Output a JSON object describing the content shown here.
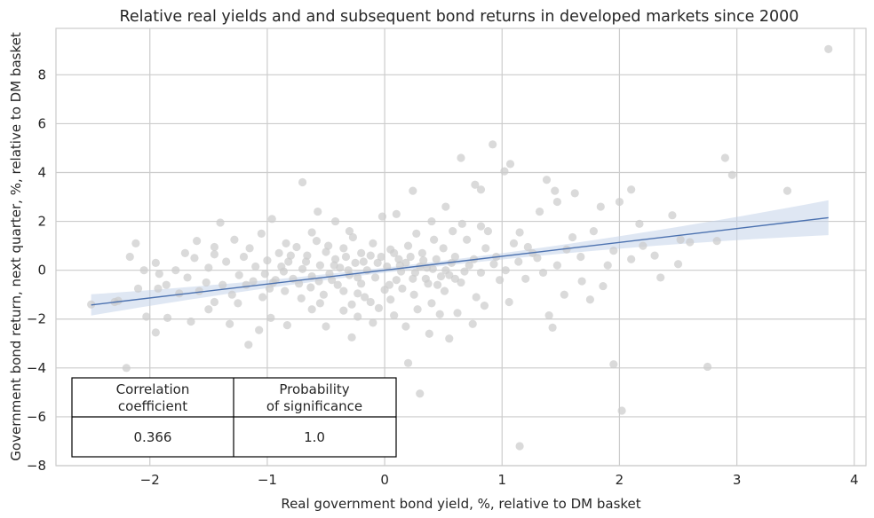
{
  "chart_data": {
    "type": "scatter",
    "title": "Relative real yields and and subsequent bond returns in developed markets since 2000",
    "xlabel": "Real government bond yield, %, relative to DM basket",
    "ylabel": "Government bond return, next quarter, %, relative to DM basket",
    "xlim": [
      -2.8,
      4.1
    ],
    "ylim": [
      -8,
      9.9
    ],
    "x_ticks": [
      -2,
      -1,
      0,
      1,
      2,
      3,
      4
    ],
    "x_tick_labels": [
      "−2",
      "−1",
      "0",
      "1",
      "2",
      "3",
      "4"
    ],
    "y_ticks": [
      -8,
      -6,
      -4,
      -2,
      0,
      2,
      4,
      6,
      8
    ],
    "y_tick_labels": [
      "−8",
      "−6",
      "−4",
      "−2",
      "0",
      "2",
      "4",
      "6",
      "8"
    ],
    "grid": true,
    "colors": {
      "points": "#cccccc",
      "regression_line": "#4c72b0",
      "confidence_band": "#c5d3ea",
      "grid": "#cccccc",
      "text": "#262626"
    },
    "series": [
      {
        "kind": "scatter",
        "points": [
          [
            3.78,
            9.05
          ],
          [
            0.92,
            5.15
          ],
          [
            0.65,
            4.6
          ],
          [
            2.9,
            4.6
          ],
          [
            1.07,
            4.35
          ],
          [
            1.02,
            4.05
          ],
          [
            2.96,
            3.9
          ],
          [
            1.38,
            3.7
          ],
          [
            -0.7,
            3.6
          ],
          [
            0.77,
            3.5
          ],
          [
            0.82,
            3.3
          ],
          [
            3.43,
            3.25
          ],
          [
            0.24,
            3.25
          ],
          [
            2.1,
            3.3
          ],
          [
            1.62,
            3.15
          ],
          [
            1.45,
            3.25
          ],
          [
            2.45,
            2.25
          ],
          [
            2.52,
            1.25
          ],
          [
            2.0,
            2.8
          ],
          [
            1.84,
            2.6
          ],
          [
            1.47,
            2.8
          ],
          [
            1.32,
            2.4
          ],
          [
            0.52,
            2.6
          ],
          [
            0.4,
            2.0
          ],
          [
            0.66,
            1.9
          ],
          [
            0.82,
            1.8
          ],
          [
            0.88,
            1.6
          ],
          [
            -0.02,
            2.2
          ],
          [
            0.1,
            2.3
          ],
          [
            -0.42,
            2.0
          ],
          [
            -0.57,
            2.4
          ],
          [
            -0.96,
            2.1
          ],
          [
            -1.4,
            1.95
          ],
          [
            -2.12,
            1.1
          ],
          [
            -2.17,
            0.55
          ],
          [
            -1.6,
            1.2
          ],
          [
            -1.28,
            1.25
          ],
          [
            -1.05,
            1.5
          ],
          [
            -0.84,
            1.1
          ],
          [
            1.1,
            1.1
          ],
          [
            1.22,
            0.95
          ],
          [
            1.55,
            0.85
          ],
          [
            1.95,
            0.8
          ],
          [
            2.3,
            0.6
          ],
          [
            2.6,
            1.15
          ],
          [
            2.1,
            0.45
          ],
          [
            1.67,
            0.55
          ],
          [
            1.47,
            0.2
          ],
          [
            1.3,
            0.5
          ],
          [
            0.95,
            0.55
          ],
          [
            0.82,
            -0.1
          ],
          [
            0.98,
            -0.4
          ],
          [
            1.2,
            -0.35
          ],
          [
            1.68,
            -0.45
          ],
          [
            1.86,
            -0.65
          ],
          [
            2.35,
            -0.3
          ],
          [
            2.5,
            0.25
          ],
          [
            2.83,
            1.2
          ],
          [
            1.53,
            -1.0
          ],
          [
            1.75,
            -1.2
          ],
          [
            1.4,
            -1.85
          ],
          [
            1.43,
            -2.35
          ],
          [
            1.06,
            -1.3
          ],
          [
            0.78,
            -1.1
          ],
          [
            0.51,
            -0.85
          ],
          [
            0.4,
            -1.35
          ],
          [
            0.62,
            -1.75
          ],
          [
            0.75,
            -2.2
          ],
          [
            0.38,
            -2.6
          ],
          [
            0.55,
            -2.8
          ],
          [
            0.18,
            -2.3
          ],
          [
            0.08,
            -1.85
          ],
          [
            -0.1,
            -2.15
          ],
          [
            -0.23,
            -1.9
          ],
          [
            -0.28,
            -2.75
          ],
          [
            -0.5,
            -2.3
          ],
          [
            -0.62,
            -1.6
          ],
          [
            -0.83,
            -2.25
          ],
          [
            -0.97,
            -1.95
          ],
          [
            -1.07,
            -2.45
          ],
          [
            -1.16,
            -3.05
          ],
          [
            -1.32,
            -2.2
          ],
          [
            -1.5,
            -1.6
          ],
          [
            -1.65,
            -2.1
          ],
          [
            -1.85,
            -1.95
          ],
          [
            -1.95,
            -2.55
          ],
          [
            -2.03,
            -1.9
          ],
          [
            -2.27,
            -1.25
          ],
          [
            -2.1,
            -0.75
          ],
          [
            -1.93,
            -0.75
          ],
          [
            -1.75,
            -0.95
          ],
          [
            -1.68,
            -0.3
          ],
          [
            -1.52,
            -0.5
          ],
          [
            -1.45,
            -1.3
          ],
          [
            -1.3,
            -1.0
          ],
          [
            -1.18,
            -0.6
          ],
          [
            -1.04,
            -1.1
          ],
          [
            -0.95,
            -0.5
          ],
          [
            -0.85,
            -0.85
          ],
          [
            -0.71,
            -1.15
          ],
          [
            -0.63,
            -0.7
          ],
          [
            -0.52,
            -1.0
          ],
          [
            -0.45,
            -0.4
          ],
          [
            -0.35,
            -0.85
          ],
          [
            -0.28,
            -1.4
          ],
          [
            -0.17,
            -1.1
          ],
          [
            -0.05,
            -1.55
          ],
          [
            0.05,
            -1.2
          ],
          [
            0.15,
            -0.75
          ],
          [
            0.25,
            -1.0
          ],
          [
            0.35,
            -0.35
          ],
          [
            0.45,
            -0.6
          ],
          [
            0.55,
            -0.2
          ],
          [
            0.65,
            -0.5
          ],
          [
            0.72,
            0.2
          ],
          [
            0.6,
            0.55
          ],
          [
            0.5,
            0.9
          ],
          [
            0.42,
            1.25
          ],
          [
            0.32,
            0.7
          ],
          [
            0.2,
            1.0
          ],
          [
            0.12,
            0.45
          ],
          [
            0.05,
            0.85
          ],
          [
            -0.03,
            0.55
          ],
          [
            -0.1,
            1.1
          ],
          [
            -0.2,
            0.7
          ],
          [
            -0.27,
            1.35
          ],
          [
            -0.35,
            0.9
          ],
          [
            -0.42,
            0.45
          ],
          [
            -0.5,
            0.75
          ],
          [
            -0.58,
            1.2
          ],
          [
            -0.66,
            0.6
          ],
          [
            -0.75,
            0.95
          ],
          [
            -0.82,
            0.35
          ],
          [
            -0.9,
            0.7
          ],
          [
            -1.0,
            0.4
          ],
          [
            -1.1,
            0.15
          ],
          [
            -1.2,
            0.55
          ],
          [
            -1.35,
            0.35
          ],
          [
            -1.5,
            0.1
          ],
          [
            -1.62,
            0.5
          ],
          [
            -1.78,
            0.0
          ],
          [
            -1.92,
            -0.15
          ],
          [
            -0.15,
            0.0
          ],
          [
            -0.25,
            0.3
          ],
          [
            -0.3,
            -0.2
          ],
          [
            -0.38,
            0.1
          ],
          [
            -0.47,
            -0.15
          ],
          [
            -0.55,
            0.2
          ],
          [
            -0.62,
            -0.25
          ],
          [
            -0.7,
            0.05
          ],
          [
            -0.78,
            -0.35
          ],
          [
            -0.86,
            -0.05
          ],
          [
            -0.93,
            -0.4
          ],
          [
            -1.02,
            -0.15
          ],
          [
            -1.12,
            -0.45
          ],
          [
            -1.24,
            -0.2
          ],
          [
            -1.38,
            -0.6
          ],
          [
            -0.08,
            -0.3
          ],
          [
            0.02,
            0.15
          ],
          [
            0.1,
            -0.4
          ],
          [
            0.18,
            0.3
          ],
          [
            0.26,
            -0.1
          ],
          [
            0.33,
            0.4
          ],
          [
            0.41,
            0.05
          ],
          [
            0.48,
            -0.25
          ],
          [
            0.57,
            0.3
          ],
          [
            0.68,
            -0.05
          ],
          [
            0.76,
            0.45
          ],
          [
            0.86,
            0.9
          ],
          [
            0.93,
            0.25
          ],
          [
            1.03,
            0.0
          ],
          [
            1.14,
            0.35
          ],
          [
            1.26,
            0.7
          ],
          [
            1.35,
            -0.1
          ],
          [
            -0.12,
            0.6
          ],
          [
            -0.2,
            -0.55
          ],
          [
            -0.33,
            0.55
          ],
          [
            -0.4,
            -0.6
          ],
          [
            -0.48,
            1.0
          ],
          [
            -0.56,
            -0.45
          ],
          [
            -0.67,
            0.35
          ],
          [
            -0.73,
            -0.55
          ],
          [
            -0.88,
            0.15
          ],
          [
            -0.98,
            -0.75
          ],
          [
            0.08,
            0.7
          ],
          [
            0.14,
            -0.05
          ],
          [
            0.22,
            0.55
          ],
          [
            0.3,
            0.15
          ],
          [
            0.37,
            -0.55
          ],
          [
            0.44,
            0.45
          ],
          [
            0.52,
            0.0
          ],
          [
            0.6,
            -0.35
          ],
          [
            -2.05,
            0.0
          ],
          [
            -2.3,
            -1.3
          ],
          [
            -2.5,
            -1.4
          ],
          [
            -0.23,
            -0.95
          ],
          [
            -0.12,
            -1.3
          ],
          [
            -0.35,
            -1.65
          ],
          [
            0.28,
            -1.6
          ],
          [
            0.47,
            -1.8
          ],
          [
            0.85,
            -1.45
          ],
          [
            -1.25,
            -1.35
          ],
          [
            -0.55,
            -1.35
          ],
          [
            -1.58,
            -0.85
          ],
          [
            -1.86,
            -0.6
          ],
          [
            0.2,
            -3.8
          ],
          [
            0.3,
            -5.05
          ],
          [
            1.15,
            -7.2
          ],
          [
            1.95,
            -3.85
          ],
          [
            2.02,
            -5.75
          ],
          [
            2.75,
            -3.95
          ],
          [
            -2.2,
            -4.0
          ],
          [
            0.0,
            -0.8
          ],
          [
            -0.06,
            0.3
          ],
          [
            0.04,
            -0.6
          ],
          [
            -0.18,
            0.35
          ],
          [
            0.13,
            0.2
          ],
          [
            -0.23,
            -0.3
          ],
          [
            0.24,
            -0.35
          ],
          [
            -0.31,
            0.0
          ],
          [
            0.36,
            0.1
          ],
          [
            -0.43,
            0.2
          ],
          [
            -0.8,
            0.6
          ],
          [
            -1.15,
            0.9
          ],
          [
            -1.45,
            0.65
          ],
          [
            -1.7,
            0.7
          ],
          [
            1.6,
            1.35
          ],
          [
            1.78,
            1.6
          ],
          [
            1.9,
            0.2
          ],
          [
            2.17,
            1.9
          ],
          [
            2.2,
            1.0
          ],
          [
            1.15,
            1.55
          ],
          [
            0.7,
            1.25
          ],
          [
            0.58,
            1.6
          ],
          [
            0.27,
            1.5
          ],
          [
            -0.3,
            1.6
          ],
          [
            -0.62,
            1.55
          ],
          [
            -1.45,
            0.95
          ],
          [
            -1.95,
            0.3
          ]
        ]
      },
      {
        "kind": "regression_line",
        "x": [
          -2.5,
          3.78
        ],
        "y": [
          -1.42,
          2.15
        ]
      },
      {
        "kind": "confidence_band",
        "x": [
          -2.5,
          3.78
        ],
        "lower": [
          -1.85,
          1.45
        ],
        "upper": [
          -0.98,
          2.88
        ]
      }
    ],
    "annotation_table": {
      "headers": [
        [
          "Correlation",
          "coefficient"
        ],
        [
          "Probability",
          "of significance"
        ]
      ],
      "values": [
        "0.366",
        "1.0"
      ],
      "placement": "bottom-left"
    }
  }
}
